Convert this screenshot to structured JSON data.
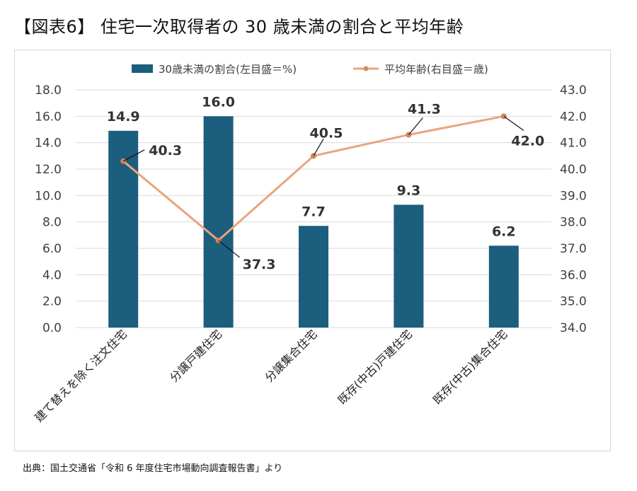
{
  "page": {
    "title": "【図表6】 住宅一次取得者の 30 歳未満の割合と平均年齢",
    "source": "出典：国土交通省「令和 6 年度住宅市場動向調査報告書」より"
  },
  "chart_data": {
    "type": "bar",
    "categories": [
      "建て替えを除く注文住宅",
      "分譲戸建住宅",
      "分譲集合住宅",
      "既存(中古)戸建住宅",
      "既存(中古)集合住宅"
    ],
    "series": [
      {
        "name": "30歳未満の割合(左目盛＝%)",
        "type": "bar",
        "axis": "left",
        "color": "#1b5e7d",
        "values": [
          14.9,
          16.0,
          7.7,
          9.3,
          6.2
        ],
        "labels": [
          "14.9",
          "16.0",
          "7.7",
          "9.3",
          "6.2"
        ]
      },
      {
        "name": "平均年齢(右目盛＝歳)",
        "type": "line",
        "axis": "right",
        "color": "#e8a57e",
        "values": [
          40.3,
          37.3,
          40.5,
          41.3,
          42.0
        ],
        "labels": [
          "40.3",
          "37.3",
          "40.5",
          "41.3",
          "42.0"
        ]
      }
    ],
    "left_axis": {
      "min": 0,
      "max": 18,
      "ticks": [
        "0.0",
        "2.0",
        "4.0",
        "6.0",
        "8.0",
        "10.0",
        "12.0",
        "14.0",
        "16.0",
        "18.0"
      ]
    },
    "right_axis": {
      "min": 34,
      "max": 43,
      "ticks": [
        "34.0",
        "35.0",
        "36.0",
        "37.0",
        "38.0",
        "39.0",
        "40.0",
        "41.0",
        "42.0",
        "43.0"
      ]
    },
    "grid": true,
    "legend": "top-center"
  }
}
